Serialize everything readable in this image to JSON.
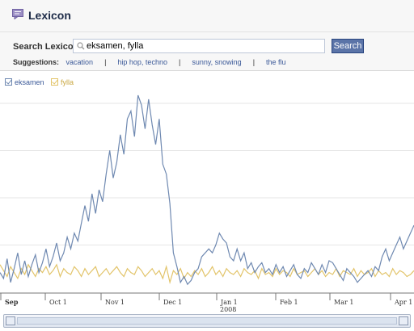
{
  "app": {
    "title": "Lexicon"
  },
  "search": {
    "label": "Search Lexicon:",
    "value": "eksamen, fylla",
    "button": "Search"
  },
  "suggestions": {
    "label": "Suggestions:",
    "items": [
      "vacation",
      "hip hop, techno",
      "sunny, snowing",
      "the flu"
    ]
  },
  "colors": {
    "eksamen": "#6f89b1",
    "fylla": "#e2c46a",
    "link": "#3b5998"
  },
  "chart_data": {
    "type": "line",
    "x_ticks": [
      "Sep",
      "Oct 1",
      "Nov 1",
      "Dec 1",
      "Jan 1",
      "Feb 1",
      "Mar 1",
      "Apr 1"
    ],
    "year_label": "2008",
    "ylim": [
      0,
      100
    ],
    "series": [
      {
        "name": "eksamen",
        "values": [
          10,
          7,
          17,
          5,
          12,
          20,
          9,
          16,
          8,
          14,
          19,
          10,
          15,
          22,
          13,
          18,
          25,
          16,
          20,
          28,
          22,
          30,
          26,
          35,
          44,
          36,
          50,
          40,
          52,
          46,
          60,
          72,
          58,
          66,
          80,
          70,
          88,
          92,
          79,
          100,
          95,
          83,
          98,
          85,
          75,
          88,
          65,
          60,
          45,
          20,
          13,
          5,
          8,
          4,
          6,
          10,
          12,
          18,
          20,
          22,
          20,
          24,
          30,
          27,
          25,
          18,
          16,
          22,
          16,
          20,
          12,
          15,
          10,
          13,
          15,
          10,
          12,
          9,
          14,
          10,
          13,
          8,
          11,
          14,
          9,
          7,
          12,
          10,
          15,
          12,
          9,
          14,
          10,
          16,
          15,
          12,
          9,
          6,
          12,
          10,
          8,
          5,
          7,
          9,
          11,
          8,
          13,
          11,
          18,
          22,
          16,
          20,
          24,
          28,
          22,
          26,
          30,
          34
        ]
      },
      {
        "name": "fylla",
        "values": [
          14,
          11,
          8,
          13,
          10,
          7,
          12,
          9,
          14,
          11,
          8,
          12,
          10,
          13,
          9,
          11,
          14,
          8,
          12,
          10,
          9,
          13,
          11,
          8,
          12,
          9,
          11,
          13,
          8,
          10,
          12,
          9,
          11,
          13,
          10,
          8,
          12,
          10,
          9,
          13,
          11,
          8,
          10,
          12,
          9,
          11,
          7,
          13,
          5,
          11,
          9,
          12,
          7,
          10,
          8,
          11,
          9,
          12,
          8,
          10,
          13,
          9,
          11,
          8,
          12,
          10,
          9,
          11,
          8,
          12,
          10,
          9,
          11,
          7,
          12,
          9,
          10,
          8,
          12,
          9,
          11,
          10,
          8,
          12,
          9,
          10,
          11,
          8,
          10,
          12,
          9,
          11,
          8,
          10,
          9,
          12,
          8,
          11,
          10,
          9,
          12,
          8,
          11,
          9,
          10,
          12,
          8,
          11,
          9,
          10,
          8,
          12,
          9,
          11,
          10,
          8,
          9,
          11
        ]
      }
    ]
  }
}
